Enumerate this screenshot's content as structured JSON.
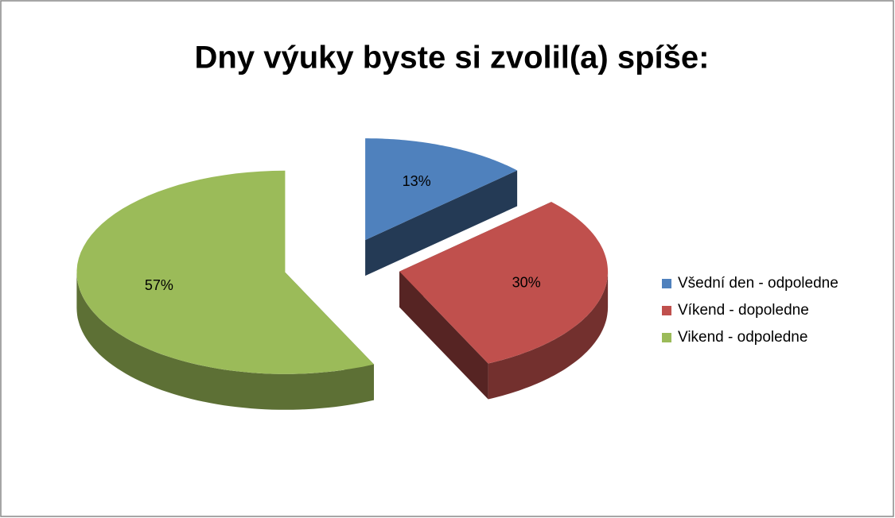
{
  "chart_data": {
    "type": "pie",
    "title": "Dny výuky byste si zvolil(a)  spíše:",
    "categories": [
      "Všední den - odpoledne",
      "Víkend - dopoledne",
      "Vikend - odpoledne"
    ],
    "values": [
      13,
      30,
      57
    ],
    "value_labels": [
      "13%",
      "30%",
      "57%"
    ],
    "colors": [
      "#4f81bd",
      "#c0504d",
      "#9bbb59"
    ],
    "legend": "right"
  }
}
